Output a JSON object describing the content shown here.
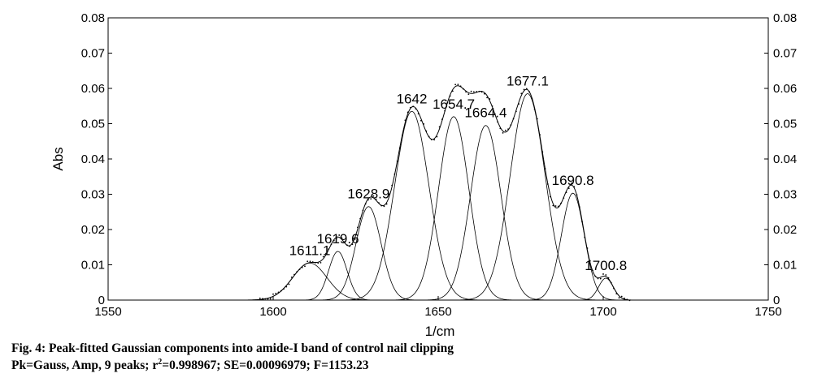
{
  "chart_data": {
    "type": "line",
    "xlabel": "1/cm",
    "ylabel": "Abs",
    "xlim": [
      1550,
      1750
    ],
    "ylim": [
      0,
      0.08
    ],
    "x_ticks": [
      "1550",
      "1600",
      "1650",
      "1700",
      "1750"
    ],
    "y_ticks": [
      "0",
      "0.01",
      "0.02",
      "0.03",
      "0.04",
      "0.05",
      "0.06",
      "0.07",
      "0.08"
    ],
    "x_tick_values": [
      1550,
      1600,
      1650,
      1700,
      1750
    ],
    "y_tick_values": [
      0,
      0.01,
      0.02,
      0.03,
      0.04,
      0.05,
      0.06,
      0.07,
      0.08
    ],
    "peaks": [
      {
        "label": "1611.1",
        "center": 1611.1,
        "amplitude": 0.0105,
        "sigma": 5.2
      },
      {
        "label": "1619.6",
        "center": 1619.6,
        "amplitude": 0.0138,
        "sigma": 2.8
      },
      {
        "label": "1628.9",
        "center": 1628.9,
        "amplitude": 0.0265,
        "sigma": 3.8
      },
      {
        "label": "1642",
        "center": 1642.0,
        "amplitude": 0.0535,
        "sigma": 5.2
      },
      {
        "label": "1654.7",
        "center": 1654.7,
        "amplitude": 0.052,
        "sigma": 4.6
      },
      {
        "label": "1664.4",
        "center": 1664.4,
        "amplitude": 0.0495,
        "sigma": 4.6
      },
      {
        "label": "1677.1",
        "center": 1677.1,
        "amplitude": 0.0585,
        "sigma": 5.3
      },
      {
        "label": "1690.8",
        "center": 1690.8,
        "amplitude": 0.0303,
        "sigma": 3.5
      },
      {
        "label": "1700.8",
        "center": 1700.8,
        "amplitude": 0.0062,
        "sigma": 2.2
      }
    ],
    "series": [
      {
        "values": "sum of fitted Gaussian components (smooth curve)"
      },
      {
        "values": "measured spectrum (dotted)"
      }
    ]
  },
  "caption": {
    "line1": "Fig. 4: Peak-fitted Gaussian components into amide-I band of control nail clipping",
    "line2_pre": "Pk=Gauss, Amp, 9 peaks; r",
    "line2_sup": "2",
    "line2_post": "=0.998967; SE=0.00096979; F=1153.23"
  }
}
